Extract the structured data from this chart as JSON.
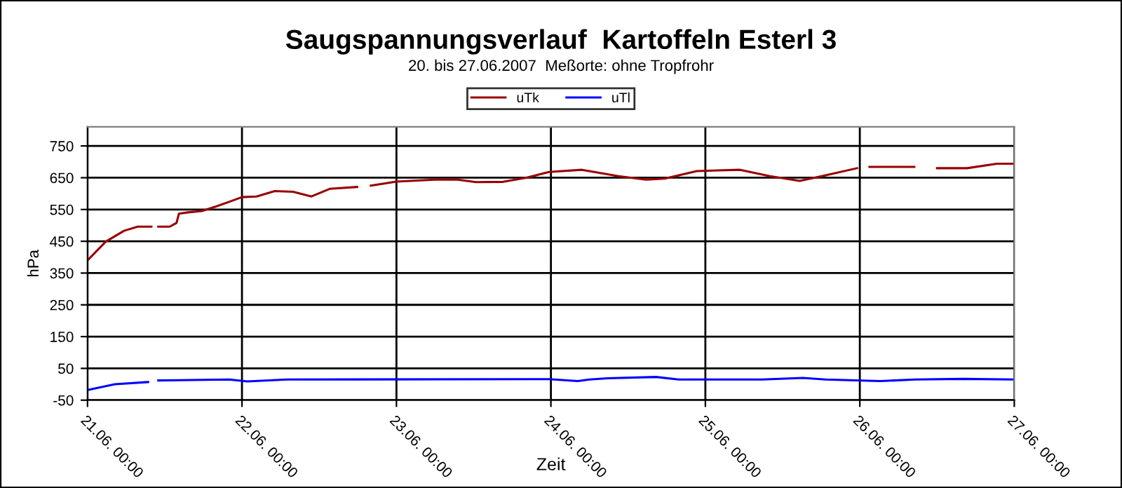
{
  "chart_data": {
    "type": "line",
    "title": "Saugspannungsverlauf  Kartoffeln Esterl 3",
    "subtitle": "20. bis 27.06.2007  Meßorte: ohne Tropfrohr",
    "xlabel": "Zeit",
    "ylabel": "hPa",
    "xlim": [
      "2007-06-21T00:00",
      "2007-06-27T00:00"
    ],
    "xticks": [
      {
        "value": "2007-06-21T00:00",
        "label": "21.06. 00:00"
      },
      {
        "value": "2007-06-22T00:00",
        "label": "22.06. 00:00"
      },
      {
        "value": "2007-06-23T00:00",
        "label": "23.06. 00:00"
      },
      {
        "value": "2007-06-24T00:00",
        "label": "24.06. 00:00"
      },
      {
        "value": "2007-06-25T00:00",
        "label": "25.06. 00:00"
      },
      {
        "value": "2007-06-26T00:00",
        "label": "26.06. 00:00"
      },
      {
        "value": "2007-06-27T00:00",
        "label": "27.06. 00:00"
      }
    ],
    "ylim": [
      -50,
      810
    ],
    "yticks": [
      {
        "value": -50,
        "label": "-50"
      },
      50,
      150,
      250,
      350,
      450,
      550,
      650,
      750
    ],
    "grid": true,
    "legend": "top",
    "marker": "none",
    "line_style": "solid",
    "series": [
      {
        "name": "uTk",
        "color": "#990000",
        "x": [
          "2007-06-21T00:00",
          "2007-06-21T02:50",
          "2007-06-21T05:41",
          "2007-06-21T07:48",
          "2007-06-21T09:56",
          "2007-06-21T10:30",
          "2007-06-21T11:00",
          "2007-06-21T12:47",
          "2007-06-21T13:50",
          "2007-06-21T14:12",
          "2007-06-21T15:37",
          "2007-06-21T17:45",
          "2007-06-21T19:53",
          "2007-06-21T22:00",
          "2007-06-22T00:00",
          "2007-06-22T02:16",
          "2007-06-22T05:06",
          "2007-06-22T07:56",
          "2007-06-22T10:48",
          "2007-06-22T13:38",
          "2007-06-22T17:54",
          "2007-06-22T18:30",
          "2007-06-22T20:01",
          "2007-06-23T00:00",
          "2007-06-23T05:58",
          "2007-06-23T09:30",
          "2007-06-23T12:22",
          "2007-06-23T16:36",
          "2007-06-23T20:10",
          "2007-06-23T23:43",
          "2007-06-24T04:50",
          "2007-06-24T10:30",
          "2007-06-24T14:48",
          "2007-06-24T17:40",
          "2007-06-24T22:40",
          "2007-06-25T05:24",
          "2007-06-25T10:02",
          "2007-06-25T14:40",
          "2007-06-25T18:35",
          "2007-06-25T23:34",
          "2007-06-26T00:30",
          "2007-06-26T01:30",
          "2007-06-26T08:28",
          "2007-06-26T10:00",
          "2007-06-26T12:00",
          "2007-06-26T16:40",
          "2007-06-26T21:18",
          "2007-06-27T00:00"
        ],
        "values": [
          390,
          449,
          483,
          496,
          496,
          null,
          496,
          496,
          508,
          537,
          541,
          545,
          559,
          574,
          589,
          591,
          608,
          606,
          591,
          615,
          621,
          null,
          625,
          638,
          644,
          644,
          636,
          637,
          650,
          668,
          675,
          655,
          644,
          647,
          671,
          675,
          655,
          640,
          657,
          680,
          null,
          684,
          684,
          null,
          680,
          680,
          694,
          694
        ]
      },
      {
        "name": "uTl",
        "color": "#0000ff",
        "x": [
          "2007-06-21T00:00",
          "2007-06-21T04:15",
          "2007-06-21T09:25",
          "2007-06-21T10:30",
          "2007-06-21T11:00",
          "2007-06-21T22:00",
          "2007-06-22T00:50",
          "2007-06-22T07:00",
          "2007-06-23T23:43",
          "2007-06-24T04:10",
          "2007-06-24T06:00",
          "2007-06-24T08:50",
          "2007-06-24T16:20",
          "2007-06-24T19:50",
          "2007-06-25T08:50",
          "2007-06-25T15:10",
          "2007-06-25T18:40",
          "2007-06-26T03:10",
          "2007-06-26T08:35",
          "2007-06-26T16:00",
          "2007-06-27T00:00"
        ],
        "values": [
          -18,
          0,
          7,
          null,
          12,
          15,
          9,
          15,
          16,
          10,
          15,
          19,
          23,
          15,
          15,
          20,
          15,
          10,
          15,
          17,
          15
        ]
      }
    ]
  }
}
